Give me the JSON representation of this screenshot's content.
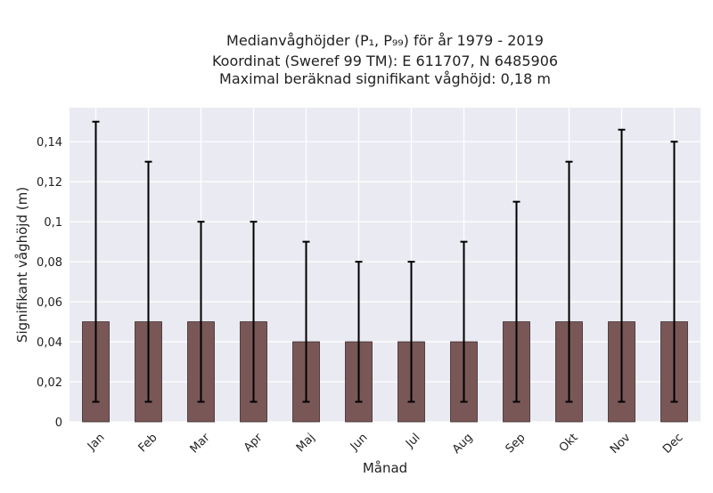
{
  "chart_data": {
    "type": "bar",
    "title_lines": [
      "Medianvåghöjder (P₁, P₉₉) för år 1979 - 2019",
      "Koordinat (Sweref 99 TM): E 611707, N 6485906",
      "Maximal beräknad signifikant våghöjd: 0,18 m"
    ],
    "xlabel": "Månad",
    "ylabel": "Signifikant våghöjd (m)",
    "categories": [
      "Jan",
      "Feb",
      "Mar",
      "Apr",
      "Maj",
      "Jun",
      "Jul",
      "Aug",
      "Sep",
      "Okt",
      "Nov",
      "Dec"
    ],
    "values": [
      0.05,
      0.05,
      0.05,
      0.05,
      0.04,
      0.04,
      0.04,
      0.04,
      0.05,
      0.05,
      0.05,
      0.05
    ],
    "error_low": [
      0.01,
      0.01,
      0.01,
      0.01,
      0.01,
      0.01,
      0.01,
      0.01,
      0.01,
      0.01,
      0.01,
      0.01
    ],
    "error_high": [
      0.15,
      0.13,
      0.1,
      0.1,
      0.09,
      0.08,
      0.08,
      0.09,
      0.11,
      0.13,
      0.146,
      0.14
    ],
    "ylim": [
      0,
      0.157
    ],
    "yticks": [
      0,
      0.02,
      0.04,
      0.06,
      0.08,
      0.1,
      0.12,
      0.14
    ],
    "ytick_labels": [
      "0",
      "0,02",
      "0,04",
      "0,06",
      "0,08",
      "0,1",
      "0,12",
      "0,14"
    ],
    "grid": true,
    "colors": {
      "bar": "#7a5757",
      "bar_edge": "#3a2a2a",
      "plot_background": "#eaeaf2",
      "grid": "#ffffff",
      "errorbar": "#000000"
    }
  }
}
